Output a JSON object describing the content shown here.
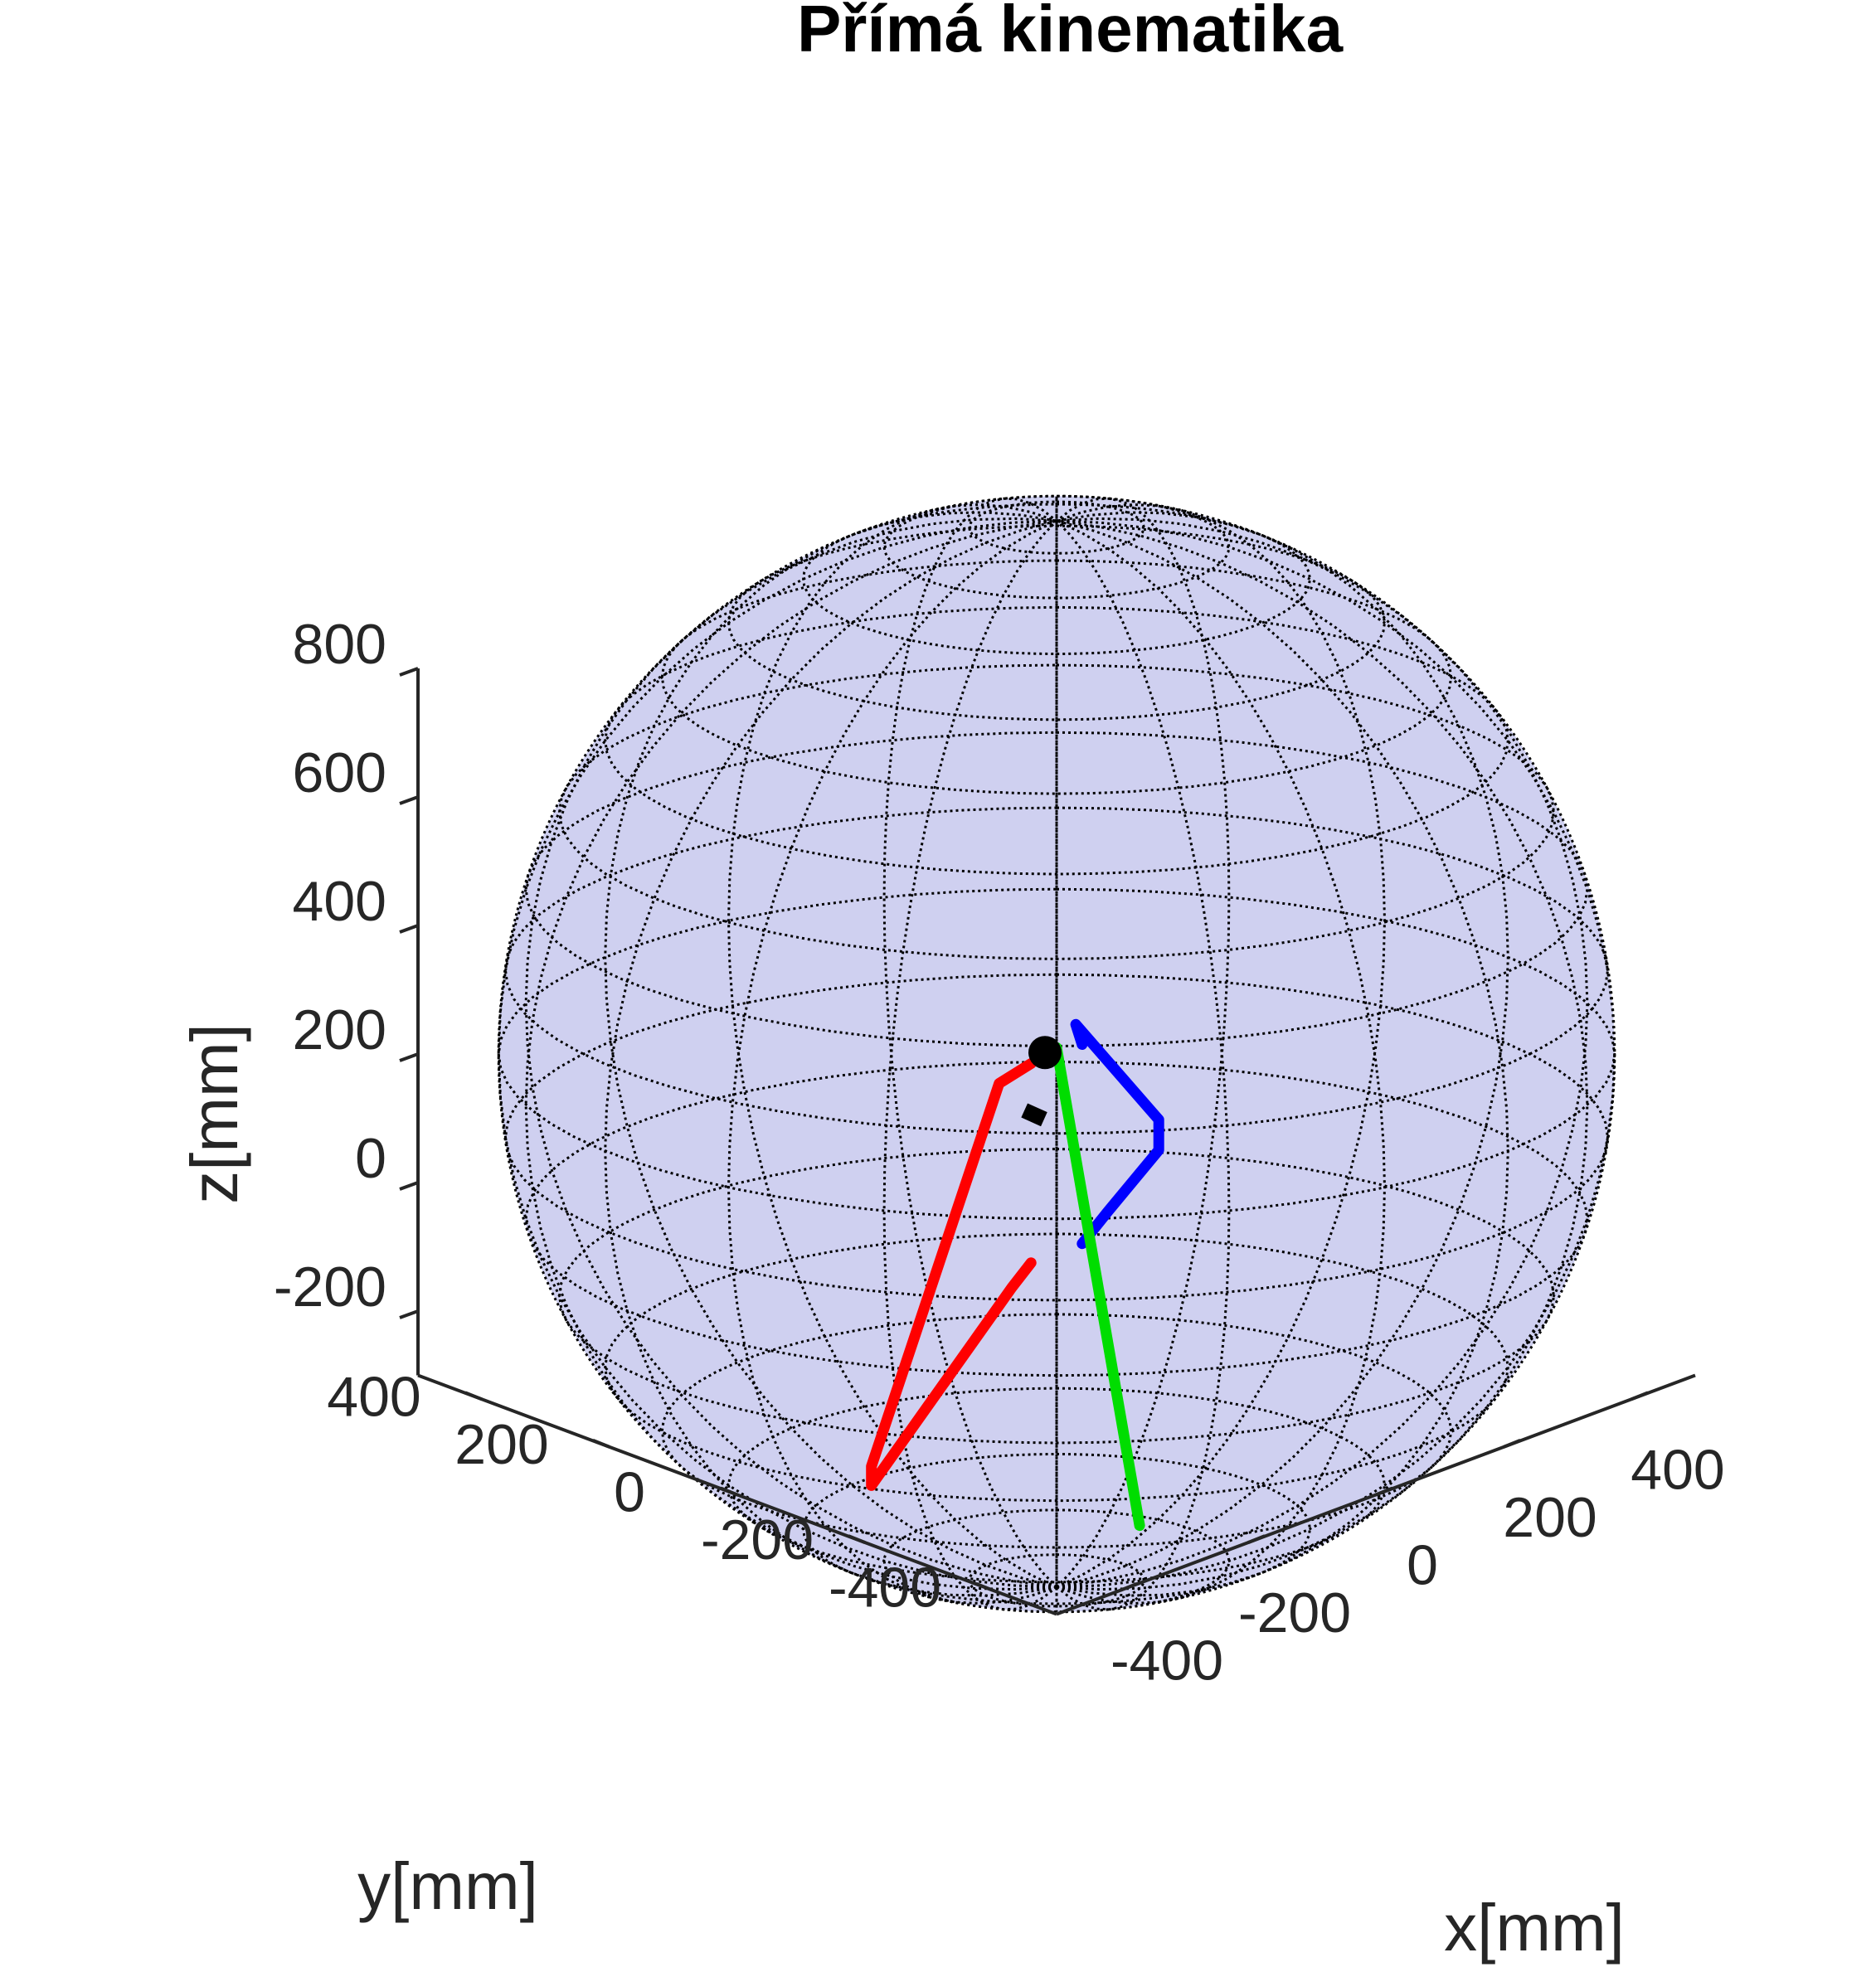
{
  "chart_data": {
    "type": "line",
    "title": "Přímá kinematika",
    "xlabel": "x[mm]",
    "ylabel": "y[mm]",
    "zlabel": "z[mm]",
    "xlim": [
      -500,
      500
    ],
    "ylim": [
      -500,
      500
    ],
    "zlim": [
      -300,
      800
    ],
    "x_ticks": [
      "-400",
      "-200",
      "0",
      "200",
      "400"
    ],
    "y_ticks": [
      "-400",
      "-200",
      "0",
      "200",
      "400"
    ],
    "z_ticks": [
      "-200",
      "0",
      "200",
      "400",
      "600",
      "800"
    ],
    "grid": false,
    "sphere": {
      "center": [
        0,
        0,
        200
      ],
      "radius": 580,
      "face_color": "#cfd0f0",
      "edge_color": "#000000",
      "edge_style": "dotted"
    },
    "series": [
      {
        "color": "#ff0000",
        "x": [
          -40,
          -120,
          -470,
          -470,
          -120,
          -40
        ],
        "y": [
          0,
          -30,
          -180,
          -180,
          -50,
          0
        ],
        "z": [
          200,
          210,
          -200,
          -230,
          -100,
          -110
        ]
      },
      {
        "color": "#0000ff",
        "x": [
          40,
          50,
          400,
          390,
          100,
          40
        ],
        "y": [
          0,
          20,
          240,
          230,
          20,
          0
        ],
        "z": [
          200,
          220,
          -140,
          -180,
          -90,
          -110
        ]
      },
      {
        "color": "#00dd00",
        "x": [
          0,
          60
        ],
        "y": [
          0,
          -70
        ],
        "z": [
          210,
          -530
        ]
      },
      {
        "color": "#000000",
        "x": [
          80,
          330
        ],
        "y": [
          120,
          360
        ],
        "z": [
          20,
          -140
        ]
      }
    ],
    "marker": {
      "color": "#000000",
      "x": 0,
      "y": 0,
      "z": 210
    }
  }
}
